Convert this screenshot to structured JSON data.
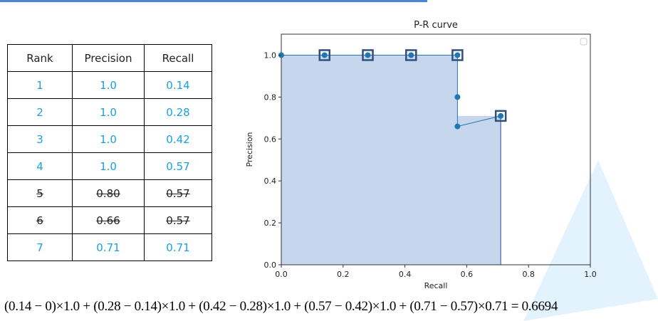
{
  "table": {
    "headers": [
      "Rank",
      "Precision",
      "Recall"
    ],
    "rows": [
      [
        "1",
        "1.0",
        "0.14"
      ],
      [
        "2",
        "1.0",
        "0.28"
      ],
      [
        "3",
        "1.0",
        "0.42"
      ],
      [
        "4",
        "1.0",
        "0.57"
      ],
      [
        "5",
        "0.80",
        "0.57"
      ],
      [
        "6",
        "0.66",
        "0.57"
      ],
      [
        "7",
        "0.71",
        "0.71"
      ]
    ],
    "struck_rows": [
      4,
      5
    ]
  },
  "chart_data": {
    "type": "line",
    "title": "P-R curve",
    "xlabel": "Recall",
    "ylabel": "Precision",
    "xlim": [
      0,
      1.0
    ],
    "ylim": [
      0,
      1.1
    ],
    "xticks": [
      "0.0",
      "0.2",
      "0.4",
      "0.6",
      "0.8",
      "1.0"
    ],
    "yticks": [
      "0.0",
      "0.2",
      "0.4",
      "0.6",
      "0.8",
      "1.0"
    ],
    "series": [
      {
        "x": [
          0,
          0.14,
          0.28,
          0.42,
          0.57,
          0.57,
          0.57,
          0.71
        ],
        "y": [
          1.0,
          1.0,
          1.0,
          1.0,
          1.0,
          0.8,
          0.66,
          0.71
        ]
      }
    ],
    "highlighted_points": {
      "x": [
        0.14,
        0.28,
        0.42,
        0.57,
        0.71
      ],
      "y": [
        1.0,
        1.0,
        1.0,
        1.0,
        0.71
      ]
    },
    "interpolated_area": {
      "x": [
        0,
        0.57,
        0.57,
        0.71
      ],
      "y": [
        1.0,
        1.0,
        0.71,
        0.71
      ]
    },
    "legend": "top-right (empty)",
    "grid": false,
    "colors": {
      "line": "#1f77b4",
      "fill": "#c6d6ec",
      "marker_box": "#2f4f7f"
    }
  },
  "formula": "(0.14 − 0)×1.0 + (0.28 − 0.14)×1.0 + (0.42 − 0.28)×1.0 + (0.57 − 0.42)×1.0 + (0.71 − 0.57)×0.71 = 0.6694"
}
